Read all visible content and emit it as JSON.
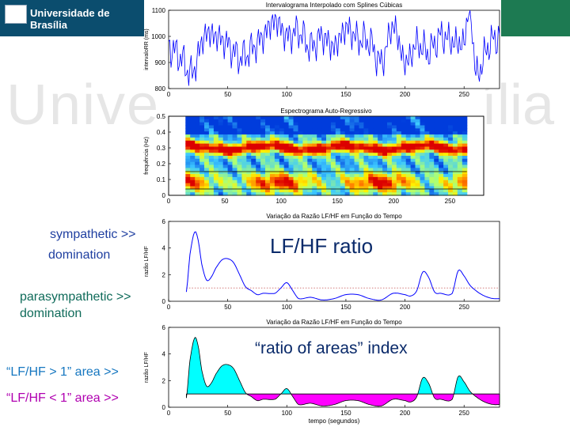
{
  "header": {
    "title": "Universidade de Brasília",
    "watermark_left": "Unive",
    "watermark_right": "ília"
  },
  "labels": {
    "symp_1": "sympathetic >>",
    "symp_2": "domination",
    "para_1": "parasympathetic >>",
    "para_2": "domination",
    "area_gt": "“LF/HF > 1” area   >>",
    "area_lt": "“LF/HF < 1” area   >>",
    "ratio_title": "LF/HF ratio",
    "areas_title": "“ratio of areas” index"
  },
  "colors": {
    "header_blue": "#0b4d6e",
    "header_green": "#1d7a52",
    "symp_text": "#1f3fa0",
    "para_text": "#0f6b5a",
    "gt_text": "#1677c0",
    "lt_text": "#b000b0",
    "fill_above": "#00ffff",
    "fill_below": "#ff00ff",
    "line": "#0000ff"
  },
  "chart_data": [
    {
      "type": "line",
      "title": "Intervalograma Interpolado com Splines Cúbicas",
      "ylabel": "intervaloRR (ms)",
      "xlabel": "",
      "xlim": [
        0,
        280
      ],
      "ylim": [
        800,
        1100
      ],
      "xticks": [
        "0",
        "50",
        "100",
        "150",
        "200",
        "250"
      ],
      "yticks": [
        "800",
        "900",
        "1000",
        "1100"
      ],
      "series": [
        {
          "x": [
            0,
            10,
            20,
            30,
            40,
            50,
            60,
            70,
            80,
            90,
            100,
            110,
            120,
            130,
            140,
            150,
            160,
            170,
            180,
            190,
            200,
            210,
            220,
            230,
            240,
            250,
            255,
            260,
            270,
            280
          ],
          "values": [
            960,
            920,
            860,
            1000,
            1000,
            970,
            920,
            950,
            1000,
            1060,
            1000,
            1020,
            960,
            1000,
            960,
            1030,
            990,
            980,
            900,
            1040,
            900,
            970,
            940,
            1000,
            980,
            980,
            1100,
            860,
            960,
            1000
          ]
        }
      ]
    },
    {
      "type": "heatmap",
      "title": "Espectrograma Auto-Regressivo",
      "ylabel": "frequência (Hz)",
      "xlabel": "",
      "xlim": [
        0,
        280
      ],
      "ylim": [
        0,
        0.5
      ],
      "xticks": [
        "0",
        "50",
        "100",
        "150",
        "200",
        "250"
      ],
      "yticks": [
        "0",
        "0.1",
        "0.2",
        "0.3",
        "0.4",
        "0.5"
      ],
      "data_xrange": [
        15,
        265
      ],
      "hf_ridge_hz": 0.3,
      "band_lines_hz": [
        0.04,
        0.15
      ]
    },
    {
      "type": "line",
      "title": "Variação da Razão LF/HF em Função do Tempo",
      "ylabel": "razão LF/HF",
      "xlabel": "",
      "xlim": [
        0,
        280
      ],
      "ylim": [
        0,
        6
      ],
      "xticks": [
        "0",
        "50",
        "100",
        "150",
        "200",
        "250"
      ],
      "yticks": [
        "0",
        "2",
        "4",
        "6"
      ],
      "reference_line": 1,
      "series": [
        {
          "x": [
            15,
            18,
            22,
            25,
            28,
            32,
            36,
            40,
            45,
            50,
            55,
            60,
            65,
            70,
            75,
            80,
            90,
            95,
            100,
            105,
            110,
            120,
            130,
            140,
            150,
            160,
            170,
            180,
            190,
            200,
            205,
            210,
            215,
            220,
            225,
            230,
            240,
            245,
            250,
            255,
            260,
            265,
            270,
            275,
            280
          ],
          "values": [
            0.7,
            3.5,
            5.2,
            4.6,
            2.8,
            1.6,
            1.8,
            2.5,
            3.1,
            3.2,
            2.9,
            2.0,
            1.1,
            0.8,
            0.5,
            0.6,
            0.6,
            1.0,
            1.4,
            0.8,
            0.2,
            0.3,
            0.1,
            0.2,
            0.5,
            0.5,
            0.2,
            0.1,
            0.6,
            0.5,
            0.4,
            0.8,
            2.2,
            1.8,
            0.7,
            0.6,
            0.6,
            2.3,
            1.9,
            1.2,
            0.8,
            0.5,
            0.3,
            0.2,
            0.2
          ]
        }
      ]
    },
    {
      "type": "area",
      "title": "Variação da Razão LF/HF em Função do Tempo",
      "ylabel": "razão LF/HF",
      "xlabel": "tempo (segundos)",
      "xlim": [
        0,
        280
      ],
      "ylim": [
        0,
        6
      ],
      "xticks": [
        "0",
        "50",
        "100",
        "150",
        "200",
        "250"
      ],
      "yticks": [
        "0",
        "2",
        "4",
        "6"
      ],
      "reference_line": 1,
      "series": [
        {
          "x": [
            15,
            18,
            22,
            25,
            28,
            32,
            36,
            40,
            45,
            50,
            55,
            60,
            65,
            70,
            75,
            80,
            90,
            95,
            100,
            105,
            110,
            120,
            130,
            140,
            150,
            160,
            170,
            180,
            190,
            200,
            205,
            210,
            215,
            220,
            225,
            230,
            240,
            245,
            250,
            255,
            260,
            265,
            270,
            275,
            280
          ],
          "values": [
            0.7,
            3.5,
            5.2,
            4.6,
            2.8,
            1.6,
            1.8,
            2.5,
            3.1,
            3.2,
            2.9,
            2.0,
            1.1,
            0.8,
            0.5,
            0.6,
            0.6,
            1.0,
            1.4,
            0.8,
            0.2,
            0.3,
            0.1,
            0.2,
            0.5,
            0.5,
            0.2,
            0.1,
            0.6,
            0.5,
            0.4,
            0.8,
            2.2,
            1.8,
            0.7,
            0.6,
            0.6,
            2.3,
            1.9,
            1.2,
            0.8,
            0.5,
            0.3,
            0.2,
            0.2
          ]
        }
      ]
    }
  ]
}
